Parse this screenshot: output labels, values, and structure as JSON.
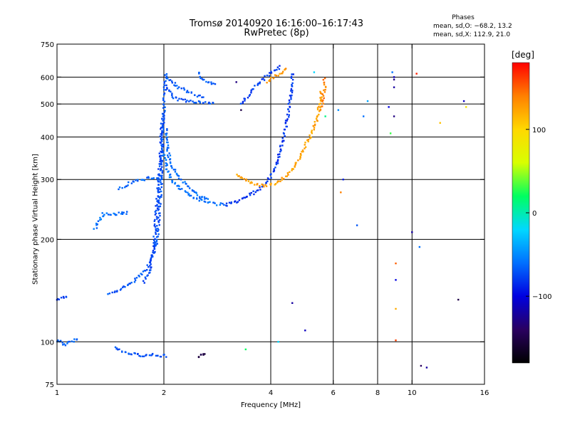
{
  "header": {
    "title_line1": "Tromsø 20140920 16:16:00–16:17:43",
    "title_line2": "RwPretec (8p)",
    "stats_title": "Phases",
    "stats_o": "mean, sd,O: −68.2, 13.2",
    "stats_x": "mean, sd,X: 112.9, 21.0"
  },
  "colorbar": {
    "unit_label": "[deg]",
    "ticks": [
      "100",
      "0",
      "−100"
    ],
    "tick_values": [
      100,
      0,
      -100
    ],
    "range": [
      -180,
      180
    ],
    "colors": [
      "#000000",
      "#2a0060",
      "#0000e0",
      "#0070ff",
      "#00d8ff",
      "#00ff60",
      "#d8ff00",
      "#ffd800",
      "#ff8000",
      "#ff0000"
    ]
  },
  "chart_data": {
    "type": "scatter",
    "title": "Tromsø 20140920 16:16:00–16:17:43",
    "subtitle": "RwPretec (8p)",
    "xlabel": "Frequency [MHz]",
    "ylabel": "Stationary phase Virtual Height [km]",
    "x_scale": "log",
    "y_scale": "log",
    "xlim": [
      1,
      16
    ],
    "ylim": [
      75,
      750
    ],
    "x_ticks": [
      "1",
      "2",
      "4",
      "6",
      "8",
      "10",
      "16"
    ],
    "x_tick_values": [
      1,
      2,
      4,
      6,
      8,
      10,
      16
    ],
    "y_ticks": [
      "75",
      "100",
      "200",
      "300",
      "400",
      "500",
      "600",
      "750"
    ],
    "y_tick_values": [
      75,
      100,
      200,
      300,
      400,
      500,
      600,
      750
    ],
    "grid_x": [
      2,
      4,
      6,
      8,
      10
    ],
    "grid_y": [
      100,
      200,
      300,
      400,
      500,
      600
    ],
    "color_axis": "phase [deg]",
    "traces": [
      {
        "phase": -80,
        "points": [
          [
            1.0,
            133
          ],
          [
            1.02,
            134
          ],
          [
            1.05,
            135
          ],
          [
            1.08,
            137
          ]
        ]
      },
      {
        "phase": -70,
        "points": [
          [
            1.4,
            138
          ],
          [
            1.5,
            142
          ],
          [
            1.6,
            148
          ],
          [
            1.7,
            155
          ],
          [
            1.8,
            165
          ],
          [
            1.85,
            175
          ],
          [
            1.9,
            190
          ],
          [
            1.92,
            210
          ],
          [
            1.94,
            240
          ],
          [
            1.96,
            280
          ],
          [
            1.97,
            320
          ],
          [
            1.98,
            370
          ],
          [
            1.99,
            420
          ],
          [
            2.0,
            480
          ],
          [
            2.01,
            530
          ],
          [
            2.02,
            580
          ],
          [
            2.03,
            620
          ]
        ]
      },
      {
        "phase": -75,
        "points": [
          [
            1.75,
            150
          ],
          [
            1.82,
            160
          ],
          [
            1.86,
            180
          ],
          [
            1.88,
            200
          ],
          [
            1.9,
            230
          ],
          [
            1.92,
            270
          ],
          [
            1.94,
            310
          ],
          [
            1.96,
            360
          ],
          [
            1.97,
            410
          ],
          [
            1.98,
            460
          ]
        ]
      },
      {
        "phase": -65,
        "points": [
          [
            1.5,
            282
          ],
          [
            1.6,
            292
          ],
          [
            1.7,
            298
          ],
          [
            1.8,
            302
          ],
          [
            1.9,
            305
          ],
          [
            2.0,
            300
          ]
        ]
      },
      {
        "phase": -60,
        "points": [
          [
            1.28,
            215
          ],
          [
            1.35,
            238
          ],
          [
            1.45,
            237
          ],
          [
            1.6,
            240
          ]
        ]
      },
      {
        "phase": -60,
        "points": [
          [
            2.0,
            360
          ],
          [
            2.05,
            320
          ],
          [
            2.1,
            300
          ],
          [
            2.2,
            285
          ],
          [
            2.4,
            268
          ],
          [
            2.6,
            258
          ],
          [
            2.8,
            254
          ],
          [
            3.0,
            253
          ]
        ]
      },
      {
        "phase": -62,
        "points": [
          [
            2.03,
            420
          ],
          [
            2.06,
            360
          ],
          [
            2.1,
            330
          ],
          [
            2.2,
            305
          ],
          [
            2.35,
            285
          ],
          [
            2.5,
            270
          ],
          [
            2.7,
            260
          ]
        ]
      },
      {
        "phase": -82,
        "points": [
          [
            3.0,
            253
          ],
          [
            3.2,
            258
          ],
          [
            3.4,
            265
          ],
          [
            3.6,
            275
          ],
          [
            3.8,
            288
          ],
          [
            4.0,
            305
          ],
          [
            4.15,
            330
          ],
          [
            4.3,
            380
          ],
          [
            4.45,
            450
          ],
          [
            4.55,
            520
          ],
          [
            4.6,
            580
          ],
          [
            4.62,
            620
          ]
        ]
      },
      {
        "phase": -72,
        "points": [
          [
            2.05,
            560
          ],
          [
            2.1,
            530
          ],
          [
            2.2,
            515
          ],
          [
            2.4,
            508
          ],
          [
            2.6,
            503
          ],
          [
            2.8,
            500
          ]
        ]
      },
      {
        "phase": -68,
        "points": [
          [
            2.05,
            600
          ],
          [
            2.2,
            560
          ],
          [
            2.4,
            535
          ],
          [
            2.6,
            520
          ]
        ]
      },
      {
        "phase": -70,
        "points": [
          [
            2.5,
            620
          ],
          [
            2.55,
            600
          ],
          [
            2.65,
            580
          ],
          [
            2.8,
            570
          ]
        ]
      },
      {
        "phase": -78,
        "points": [
          [
            3.3,
            500
          ],
          [
            3.5,
            540
          ],
          [
            3.7,
            575
          ],
          [
            3.9,
            605
          ],
          [
            4.1,
            630
          ],
          [
            4.3,
            645
          ]
        ]
      },
      {
        "phase": 125,
        "points": [
          [
            3.2,
            310
          ],
          [
            3.4,
            300
          ],
          [
            3.6,
            292
          ],
          [
            3.8,
            288
          ],
          [
            4.0,
            289
          ],
          [
            4.2,
            295
          ],
          [
            4.4,
            305
          ],
          [
            4.6,
            320
          ],
          [
            4.8,
            345
          ],
          [
            5.0,
            375
          ],
          [
            5.2,
            410
          ],
          [
            5.4,
            450
          ],
          [
            5.5,
            500
          ],
          [
            5.55,
            550
          ]
        ]
      },
      {
        "phase": 130,
        "points": [
          [
            3.9,
            580
          ],
          [
            4.1,
            600
          ],
          [
            4.3,
            620
          ],
          [
            4.45,
            640
          ]
        ]
      },
      {
        "phase": 140,
        "points": [
          [
            5.55,
            480
          ],
          [
            5.6,
            510
          ],
          [
            5.65,
            540
          ],
          [
            5.7,
            570
          ],
          [
            5.65,
            600
          ]
        ]
      },
      {
        "phase": -72,
        "points": [
          [
            1.45,
            96
          ],
          [
            1.55,
            93
          ],
          [
            1.65,
            92
          ],
          [
            1.75,
            91
          ],
          [
            1.85,
            92
          ],
          [
            1.95,
            91
          ],
          [
            2.05,
            91
          ]
        ]
      },
      {
        "phase": -150,
        "points": [
          [
            2.5,
            90
          ],
          [
            2.55,
            92
          ],
          [
            2.6,
            91
          ],
          [
            2.65,
            92
          ]
        ]
      },
      {
        "phase": -65,
        "points": [
          [
            1.0,
            101
          ],
          [
            1.05,
            98
          ],
          [
            1.1,
            100
          ],
          [
            1.15,
            103
          ]
        ]
      }
    ],
    "scattered_points": [
      [
        5.0,
        108,
        -110
      ],
      [
        6.3,
        275,
        140
      ],
      [
        6.4,
        300,
        -90
      ],
      [
        7.0,
        220,
        -70
      ],
      [
        7.3,
        460,
        -60
      ],
      [
        6.2,
        480,
        -50
      ],
      [
        7.5,
        510,
        -40
      ],
      [
        8.6,
        490,
        -100
      ],
      [
        8.7,
        410,
        30
      ],
      [
        8.8,
        620,
        -60
      ],
      [
        8.9,
        600,
        -110
      ],
      [
        8.9,
        590,
        -130
      ],
      [
        8.9,
        560,
        -120
      ],
      [
        8.9,
        460,
        -130
      ],
      [
        9.0,
        170,
        150
      ],
      [
        9.0,
        152,
        -100
      ],
      [
        9.0,
        125,
        120
      ],
      [
        9.0,
        101,
        160
      ],
      [
        10.0,
        210,
        -120
      ],
      [
        10.3,
        614,
        170
      ],
      [
        10.5,
        190,
        -60
      ],
      [
        10.6,
        85,
        -140
      ],
      [
        11.0,
        84,
        -120
      ],
      [
        12.0,
        440,
        110
      ],
      [
        13.5,
        133,
        -150
      ],
      [
        14.0,
        510,
        -110
      ],
      [
        14.2,
        490,
        90
      ],
      [
        3.2,
        580,
        -130
      ],
      [
        3.3,
        480,
        -150
      ],
      [
        4.2,
        100,
        -20
      ],
      [
        4.6,
        130,
        -120
      ],
      [
        5.7,
        460,
        10
      ],
      [
        5.3,
        620,
        -20
      ],
      [
        3.4,
        95,
        20
      ]
    ]
  }
}
